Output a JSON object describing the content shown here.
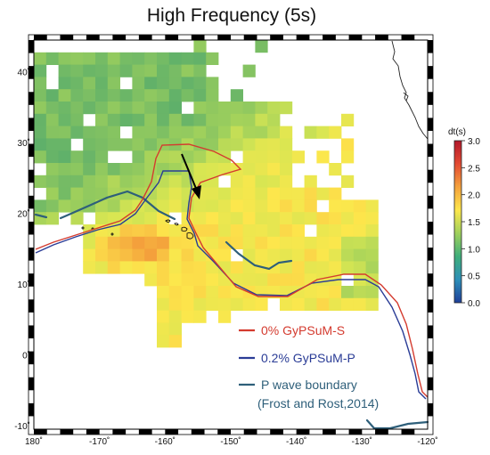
{
  "title": "High Frequency (5s)",
  "map": {
    "lon_range": [
      180,
      -120
    ],
    "lat_range": [
      -10,
      45
    ],
    "lon_ticks": [
      "180˚",
      "-170˚",
      "-160˚",
      "-150˚",
      "-140˚",
      "-130˚",
      "-120˚"
    ],
    "lat_ticks": [
      "-10˚",
      "0˚",
      "10˚",
      "20˚",
      "30˚",
      "40˚"
    ]
  },
  "colorbar": {
    "label": "dt(s)",
    "ticks": [
      "3.0",
      "2.5",
      "2.0",
      "1.5",
      "1.0",
      "0.5",
      "0.0"
    ],
    "colors": [
      "#b2182b",
      "#e34a33",
      "#f4a23c",
      "#fde74c",
      "#9fd05c",
      "#3fae7b",
      "#2d8fb8",
      "#1f3f99"
    ]
  },
  "legend": [
    {
      "label": "0%     GyPSuM-S",
      "color": "#d43b2f"
    },
    {
      "label": "0.2%  GyPSuM-P",
      "color": "#2a3c96"
    },
    {
      "label": "P wave boundary",
      "color": "#2e5f7a"
    },
    {
      "label": "(Frost and Rost,2014)",
      "color": "#2e5f7a"
    }
  ]
}
